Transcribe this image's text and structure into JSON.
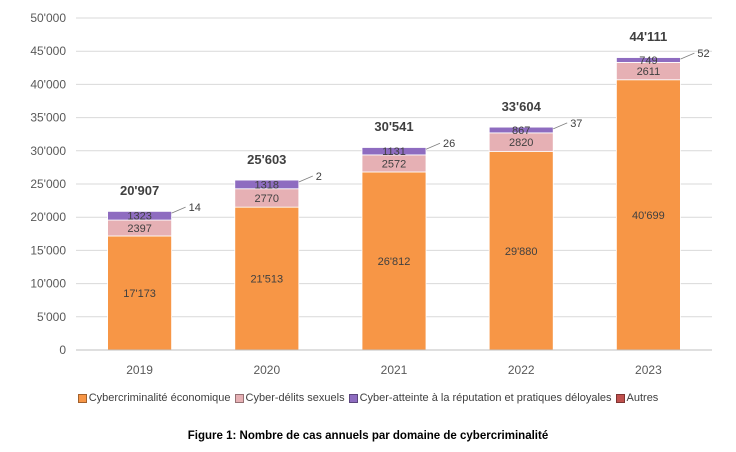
{
  "chart_data": {
    "type": "bar",
    "stacked": true,
    "categories": [
      "2019",
      "2020",
      "2021",
      "2022",
      "2023"
    ],
    "series": [
      {
        "name": "Cybercriminalité économique",
        "color": "#F79646",
        "values": [
          17173,
          21513,
          26812,
          29880,
          40699
        ],
        "labels": [
          "17'173",
          "21'513",
          "26'812",
          "29'880",
          "40'699"
        ]
      },
      {
        "name": "Cyber-délits sexuels",
        "color": "#E6B0B4",
        "values": [
          2397,
          2770,
          2572,
          2820,
          2611
        ],
        "labels": [
          "2397",
          "2770",
          "2572",
          "2820",
          "2611"
        ]
      },
      {
        "name": "Cyber-atteinte à la réputation et pratiques déloyales",
        "color": "#8E6CC0",
        "values": [
          1323,
          1318,
          1131,
          867,
          749
        ],
        "labels": [
          "1323",
          "1318",
          "1131",
          "867",
          "749"
        ]
      },
      {
        "name": "Autres",
        "color": "#C0504D",
        "values": [
          14,
          2,
          26,
          37,
          52
        ],
        "labels": [
          "14",
          "2",
          "26",
          "37",
          "52"
        ]
      }
    ],
    "totals": [
      "20'907",
      "25'603",
      "30'541",
      "33'604",
      "44'111"
    ],
    "ylim": [
      0,
      50000
    ],
    "yticks": [
      0,
      5000,
      10000,
      15000,
      20000,
      25000,
      30000,
      35000,
      40000,
      45000,
      50000
    ],
    "ytick_labels": [
      "0",
      "5'000",
      "10'000",
      "15'000",
      "20'000",
      "25'000",
      "30'000",
      "35'000",
      "40'000",
      "45'000",
      "50'000"
    ],
    "grid": true,
    "legend_position": "bottom",
    "xlabel": "",
    "ylabel": ""
  },
  "caption": "Figure 1: Nombre de cas annuels par domaine de cybercriminalité"
}
